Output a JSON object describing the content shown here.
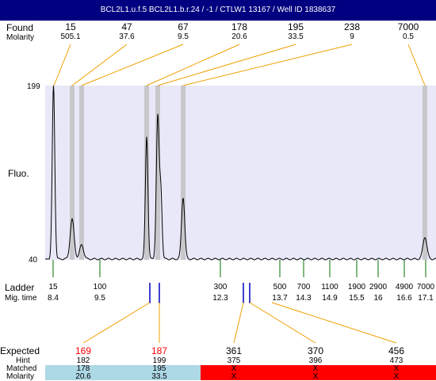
{
  "title": "BCL2L1.u.f.5  BCL2L1.b.r.24 / -1 / CTLW1 13167 / Well ID 1838637",
  "labels": {
    "found": "Found",
    "molarity": "Molarity",
    "fluo": "Fluo.",
    "ladder": "Ladder",
    "mig_time": "Mig. time",
    "expected": "Expected",
    "hint": "Hint",
    "matched": "Matched",
    "molarity_bottom": "Molarity"
  },
  "y_axis": {
    "max": "199",
    "min": "40"
  },
  "found": [
    {
      "size": "15",
      "molarity": "505.1"
    },
    {
      "size": "47",
      "molarity": "37.6"
    },
    {
      "size": "67",
      "molarity": "9.5"
    },
    {
      "size": "178",
      "molarity": "20.6"
    },
    {
      "size": "195",
      "molarity": "33.5"
    },
    {
      "size": "238",
      "molarity": "9"
    },
    {
      "size": "7000",
      "molarity": "0.5"
    }
  ],
  "ladder": [
    {
      "size": "15",
      "time": "8.4"
    },
    {
      "size": "100",
      "time": "9.5"
    },
    {
      "size": "300",
      "time": "12.3"
    },
    {
      "size": "500",
      "time": "13.7"
    },
    {
      "size": "700",
      "time": "14.3"
    },
    {
      "size": "1100",
      "time": "14.9"
    },
    {
      "size": "1900",
      "time": "15.5"
    },
    {
      "size": "2900",
      "time": "16"
    },
    {
      "size": "4900",
      "time": "16.6"
    },
    {
      "size": "7000",
      "time": "17.1"
    }
  ],
  "expected": [
    {
      "expected": "169",
      "hint": "182",
      "matched": "178",
      "molarity": "20.6",
      "color": "#ff0000"
    },
    {
      "expected": "187",
      "hint": "199",
      "matched": "195",
      "molarity": "33.5",
      "color": "#ff0000"
    },
    {
      "expected": "361",
      "hint": "375",
      "matched": "X",
      "molarity": "X",
      "color": "#000000"
    },
    {
      "expected": "370",
      "hint": "396",
      "matched": "X",
      "molarity": "X",
      "color": "#000000"
    },
    {
      "expected": "456",
      "hint": "473",
      "matched": "X",
      "molarity": "X",
      "color": "#000000"
    }
  ],
  "colors": {
    "title_bg": "#000080",
    "plot_bg": "#e8e8f8",
    "found_line": "#f0a000",
    "ladder_tick": "#007000",
    "marker_blue": "#0000c0",
    "matched_band": "#add8e6",
    "unmatched_band": "#ff0000"
  }
}
